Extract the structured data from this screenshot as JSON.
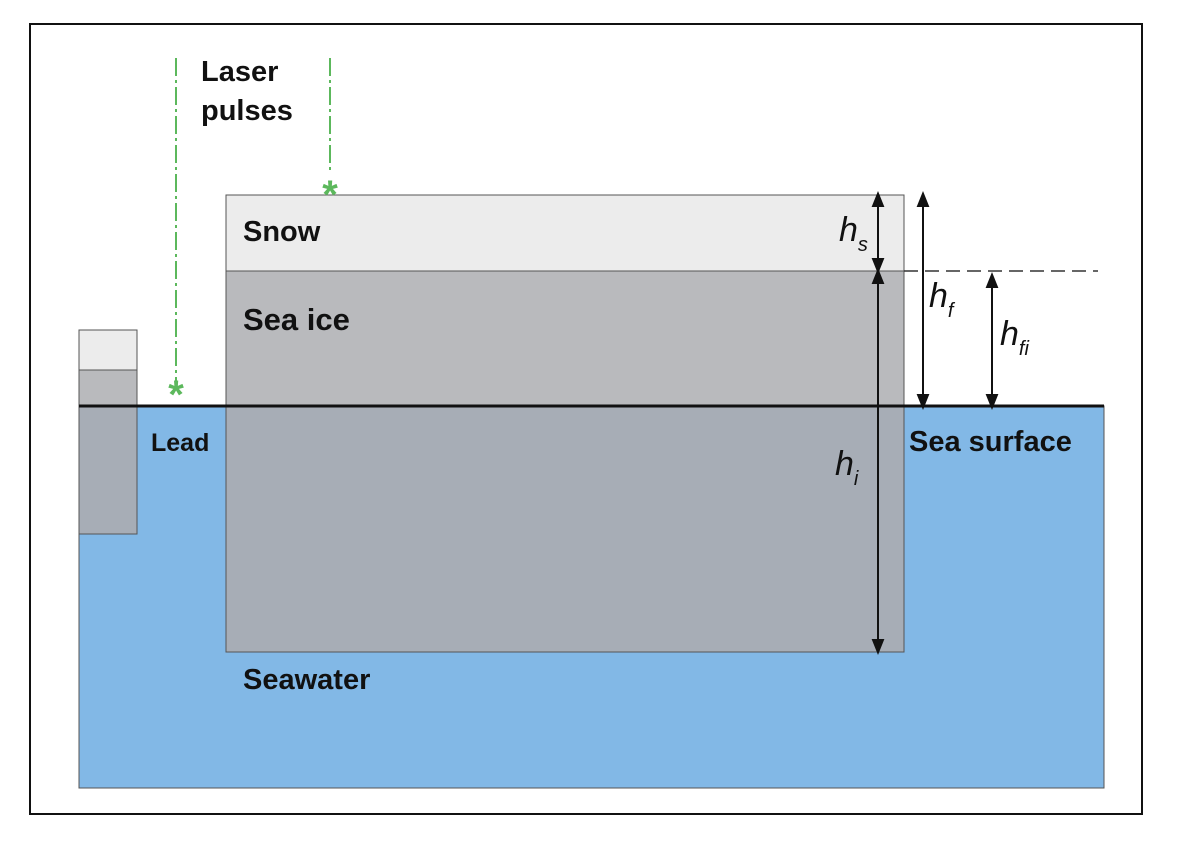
{
  "labels": {
    "laser_line1": "Laser",
    "laser_line2": "pulses",
    "snow": "Snow",
    "sea_ice": "Sea ice",
    "lead": "Lead",
    "sea_surface": "Sea surface",
    "seawater": "Seawater"
  },
  "symbols": {
    "h_s": {
      "base": "h",
      "sub": "s"
    },
    "h_f": {
      "base": "h",
      "sub": "f"
    },
    "h_fi": {
      "base": "h",
      "sub": "fi"
    },
    "h_i": {
      "base": "h",
      "sub": "i"
    }
  },
  "markers": {
    "laser_return": "*"
  },
  "colors": {
    "seawater": "#82b8e6",
    "snow": "#ececec",
    "sea_ice_above": "#b9babd",
    "sea_ice_below": "#a7adb6",
    "laser": "#5cb85c",
    "outline": "#111111"
  }
}
